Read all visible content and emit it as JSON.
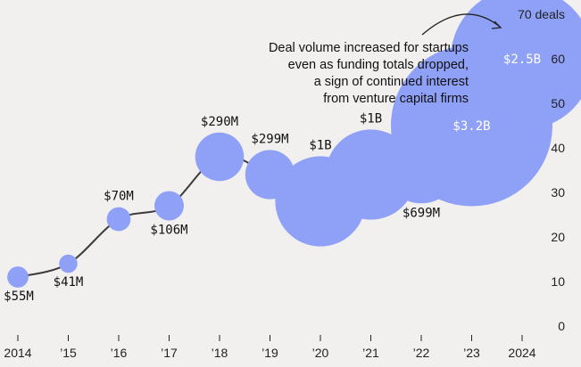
{
  "chart_data": {
    "type": "scatter",
    "title": "",
    "xlabel": "",
    "ylabel": "deals",
    "ylim": [
      0,
      70
    ],
    "yticks": [
      {
        "value": 0,
        "label": "0"
      },
      {
        "value": 10,
        "label": "10"
      },
      {
        "value": 20,
        "label": "20"
      },
      {
        "value": 30,
        "label": "30"
      },
      {
        "value": 40,
        "label": "40"
      },
      {
        "value": 50,
        "label": "50"
      },
      {
        "value": 60,
        "label": "60"
      },
      {
        "value": 70,
        "label": "70 deals"
      }
    ],
    "x_labels": [
      "2014",
      "'15",
      "'16",
      "'17",
      "'18",
      "'19",
      "'20",
      "'21",
      "'22",
      "'23",
      "'24"
    ],
    "x_labels_display": [
      "2014",
      "’15",
      "’16",
      "’17",
      "’18",
      "’19",
      "’20",
      "’21",
      "’22",
      "’23",
      "2024"
    ],
    "points": [
      {
        "x": "2014",
        "deals": 11,
        "funding": "$55M",
        "funding_musd": 55,
        "label_pos": "below-left"
      },
      {
        "x": "2015",
        "deals": 14,
        "funding": "$41M",
        "funding_musd": 41,
        "label_pos": "below"
      },
      {
        "x": "2016",
        "deals": 24,
        "funding": "$70M",
        "funding_musd": 70,
        "label_pos": "above"
      },
      {
        "x": "2017",
        "deals": 27,
        "funding": "$106M",
        "funding_musd": 106,
        "label_pos": "below"
      },
      {
        "x": "2018",
        "deals": 38,
        "funding": "$290M",
        "funding_musd": 290,
        "label_pos": "above"
      },
      {
        "x": "2019",
        "deals": 34,
        "funding": "$299M",
        "funding_musd": 299,
        "label_pos": "above"
      },
      {
        "x": "2020",
        "deals": 28,
        "funding": "$1B",
        "funding_musd": 1000,
        "label_pos": "above"
      },
      {
        "x": "2021",
        "deals": 34,
        "funding": "$1B",
        "funding_musd": 1000,
        "label_pos": "above"
      },
      {
        "x": "2022",
        "deals": 36,
        "funding": "$699M",
        "funding_musd": 699,
        "label_pos": "below"
      },
      {
        "x": "2023",
        "deals": 45,
        "funding": "$3.2B",
        "funding_musd": 3200,
        "label_pos": "inside"
      },
      {
        "x": "2024",
        "deals": 60,
        "funding": "$2.5B",
        "funding_musd": 2500,
        "label_pos": "inside"
      }
    ],
    "annotation": {
      "lines": [
        "Deal volume increased for startups",
        "even as funding totals dropped,",
        "a sign of continued interest",
        "from venture capital firms"
      ]
    },
    "colors": {
      "bubble": "#8fa0f7",
      "line": "#3b3b3b",
      "background": "#f1f0ee"
    }
  }
}
